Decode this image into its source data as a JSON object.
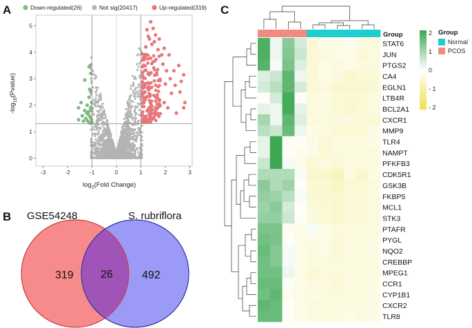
{
  "panels": {
    "a": "A",
    "b": "B",
    "c": "C"
  },
  "volcano": {
    "legend": [
      {
        "label": "Down-regulated(26)",
        "color": "#7fba7f"
      },
      {
        "label": "Not sig(20417)",
        "color": "#b3b3b3"
      },
      {
        "label": "Up-regulated(319)",
        "color": "#e8767a"
      }
    ],
    "x_label_pre": "log",
    "x_label_sub": "2",
    "x_label_post": "(Fold Change)",
    "y_label_pre": "-log",
    "y_label_sub": "10",
    "y_label_post": "(Pvalue)",
    "x_ticks": [
      "-3",
      "-2",
      "-1",
      "0",
      "1",
      "2",
      "3"
    ],
    "y_ticks": [
      "0",
      "1",
      "2",
      "3",
      "4",
      "5"
    ],
    "threshold_y": 1.3,
    "threshold_x": [
      -1,
      1
    ]
  },
  "chart_data": {
    "type": "scatter",
    "title": "",
    "xlabel": "log2(Fold Change)",
    "ylabel": "-log10(Pvalue)",
    "xlim": [
      -3.3,
      3.1
    ],
    "ylim": [
      -0.3,
      5.4
    ],
    "series": [
      {
        "name": "Down-regulated(26)",
        "points": [
          [
            -1.07,
            3.5
          ],
          [
            -1.05,
            3.2
          ],
          [
            -1.12,
            3.45
          ],
          [
            -1.3,
            2.95
          ],
          [
            -1.45,
            2.1
          ],
          [
            -1.55,
            1.9
          ],
          [
            -1.1,
            2.6
          ],
          [
            -1.05,
            1.8
          ],
          [
            -1.15,
            1.65
          ],
          [
            -1.08,
            1.55
          ],
          [
            -1.25,
            1.5
          ],
          [
            -1.02,
            1.45
          ],
          [
            -1.18,
            1.4
          ],
          [
            -1.0,
            1.35
          ],
          [
            -1.4,
            1.6
          ],
          [
            -1.3,
            1.8
          ],
          [
            -1.12,
            2.3
          ],
          [
            -1.2,
            2.0
          ],
          [
            -1.06,
            1.9
          ],
          [
            -1.02,
            2.1
          ],
          [
            -1.35,
            1.4
          ],
          [
            -1.22,
            1.7
          ],
          [
            -1.1,
            1.33
          ],
          [
            -1.05,
            2.5
          ],
          [
            -1.55,
            1.45
          ],
          [
            -1.15,
            1.75
          ]
        ]
      },
      {
        "name": "Up-regulated(319)",
        "points": [
          [
            1.4,
            5.15
          ],
          [
            1.25,
            4.85
          ],
          [
            1.5,
            4.9
          ],
          [
            1.3,
            4.6
          ],
          [
            1.55,
            4.4
          ],
          [
            1.45,
            4.3
          ],
          [
            1.75,
            4.5
          ],
          [
            1.6,
            4.65
          ],
          [
            1.35,
            4.5
          ],
          [
            1.2,
            4.2
          ],
          [
            1.7,
            4.1
          ],
          [
            1.95,
            4.15
          ],
          [
            1.85,
            3.9
          ],
          [
            2.15,
            3.9
          ],
          [
            2.55,
            3.5
          ],
          [
            1.9,
            3.55
          ],
          [
            2.05,
            3.3
          ],
          [
            2.35,
            3.3
          ],
          [
            2.75,
            3.15
          ],
          [
            2.2,
            3.0
          ],
          [
            2.65,
            2.9
          ],
          [
            2.4,
            2.75
          ],
          [
            2.0,
            2.8
          ],
          [
            2.6,
            2.5
          ],
          [
            2.25,
            2.45
          ],
          [
            2.75,
            1.9
          ],
          [
            2.8,
            2.1
          ],
          [
            2.45,
            1.7
          ],
          [
            2.1,
            1.9
          ],
          [
            1.95,
            2.1
          ]
        ]
      },
      {
        "name": "Not sig(20417)",
        "points": []
      }
    ]
  },
  "venn": {
    "left_title": "GSE54248",
    "right_title": "S. rubriflora",
    "left_count": "319",
    "overlap_count": "26",
    "right_count": "492"
  },
  "heatmap": {
    "group_label": "Group",
    "legend_title": "Group",
    "legend_groups": [
      {
        "label": "Normal",
        "color": "#1fcfd0"
      },
      {
        "label": "PCOS",
        "color": "#f38a7f"
      }
    ],
    "scale_ticks": [
      "2",
      "1",
      "0",
      "- 1",
      "- 2"
    ],
    "columns": [
      "PCOS",
      "PCOS",
      "PCOS",
      "PCOS",
      "Normal",
      "Normal",
      "Normal",
      "Normal",
      "Normal",
      "Normal"
    ],
    "genes": [
      "STAT6",
      "JUN",
      "PTGS2",
      "CA4",
      "EGLN1",
      "LTB4R",
      "BCL2A1",
      "CXCR1",
      "MMP9",
      "TLR4",
      "NAMPT",
      "PFKFB3",
      "CDK5R1",
      "GSK3B",
      "FKBP5",
      "MCL1",
      "STK3",
      "PTAFR",
      "PYGL",
      "NQO2",
      "CREBBP",
      "MPEG1",
      "CCR1",
      "CYP1B1",
      "CXCR2",
      "TLR8"
    ],
    "values": [
      [
        2.0,
        0.2,
        1.3,
        0.5,
        -0.5,
        -0.3,
        -0.3,
        -0.2,
        -0.4,
        -0.4
      ],
      [
        2.0,
        0.2,
        1.4,
        0.6,
        -0.5,
        -0.4,
        -0.3,
        -0.3,
        -0.5,
        -0.4
      ],
      [
        1.9,
        0.1,
        1.5,
        0.4,
        -0.5,
        -0.3,
        -0.4,
        -0.3,
        -0.4,
        -0.4
      ],
      [
        0.4,
        0.6,
        1.8,
        0.2,
        -0.5,
        -0.3,
        -0.4,
        -0.6,
        -0.5,
        -0.5
      ],
      [
        0.5,
        0.8,
        1.8,
        0.5,
        -0.5,
        -0.4,
        -0.6,
        -0.6,
        -0.6,
        -0.5
      ],
      [
        -0.1,
        0.5,
        2.1,
        -0.1,
        -0.4,
        -0.3,
        -0.5,
        -0.5,
        -0.5,
        -0.4
      ],
      [
        0.3,
        0.2,
        2.1,
        0.3,
        -0.4,
        -0.4,
        -0.5,
        -0.6,
        -0.5,
        -0.4
      ],
      [
        1.0,
        0.2,
        1.8,
        0.4,
        -0.4,
        -0.4,
        -0.4,
        -0.4,
        -0.5,
        -0.5
      ],
      [
        0.8,
        0.6,
        1.7,
        0.2,
        -0.3,
        -0.4,
        -0.5,
        -0.5,
        -0.5,
        -0.3
      ],
      [
        0.3,
        2.3,
        -0.1,
        -0.1,
        -0.3,
        -0.5,
        -0.4,
        -0.4,
        -0.4,
        -0.3
      ],
      [
        0.3,
        2.3,
        -0.1,
        -0.2,
        -0.3,
        -0.5,
        -0.4,
        -0.4,
        -0.4,
        -0.4
      ],
      [
        0.6,
        2.2,
        0.1,
        -0.3,
        -0.5,
        -0.4,
        -0.5,
        -0.4,
        -0.4,
        -0.4
      ],
      [
        0.9,
        0.9,
        0.9,
        0.1,
        -0.6,
        -0.6,
        -0.8,
        -0.4,
        -0.6,
        -0.3
      ],
      [
        1.3,
        0.9,
        1.1,
        -0.1,
        -0.5,
        -0.5,
        -0.7,
        -0.5,
        -0.5,
        -0.4
      ],
      [
        1.2,
        1.1,
        0.8,
        0.1,
        -0.5,
        -0.6,
        -0.6,
        -0.5,
        -0.5,
        -0.4
      ],
      [
        1.1,
        1.3,
        0.5,
        -0.1,
        -0.4,
        -0.5,
        -0.6,
        -0.5,
        -0.5,
        -0.4
      ],
      [
        1.2,
        1.2,
        0.6,
        -0.1,
        -0.4,
        -0.5,
        -0.6,
        -0.5,
        -0.5,
        -0.4
      ],
      [
        1.5,
        1.5,
        -0.2,
        -0.3,
        0.1,
        -0.3,
        -0.4,
        -0.4,
        -0.4,
        -0.4
      ],
      [
        1.6,
        1.5,
        -0.1,
        -0.3,
        -0.3,
        -0.3,
        -0.5,
        -0.4,
        -0.4,
        -0.3
      ],
      [
        1.7,
        1.4,
        0.1,
        -0.3,
        -0.4,
        -0.3,
        -0.5,
        -0.4,
        -0.4,
        -0.3
      ],
      [
        1.6,
        1.4,
        0.1,
        -0.3,
        -0.4,
        -0.4,
        -0.4,
        -0.4,
        -0.4,
        -0.4
      ],
      [
        1.6,
        1.6,
        0.2,
        -0.3,
        -0.5,
        -0.4,
        -0.4,
        -0.4,
        -0.4,
        -0.4
      ],
      [
        1.7,
        1.7,
        -0.1,
        -0.3,
        -0.4,
        -0.4,
        -0.5,
        -0.4,
        -0.4,
        -0.3
      ],
      [
        1.6,
        1.8,
        -0.2,
        -0.3,
        -0.3,
        -0.4,
        -0.4,
        -0.4,
        -0.4,
        -0.3
      ],
      [
        1.8,
        1.7,
        -0.1,
        -0.3,
        -0.4,
        -0.4,
        -0.4,
        -0.4,
        -0.4,
        -0.3
      ],
      [
        1.7,
        1.7,
        -0.1,
        -0.3,
        -0.4,
        -0.4,
        -0.4,
        -0.3,
        -0.4,
        -0.3
      ]
    ]
  }
}
